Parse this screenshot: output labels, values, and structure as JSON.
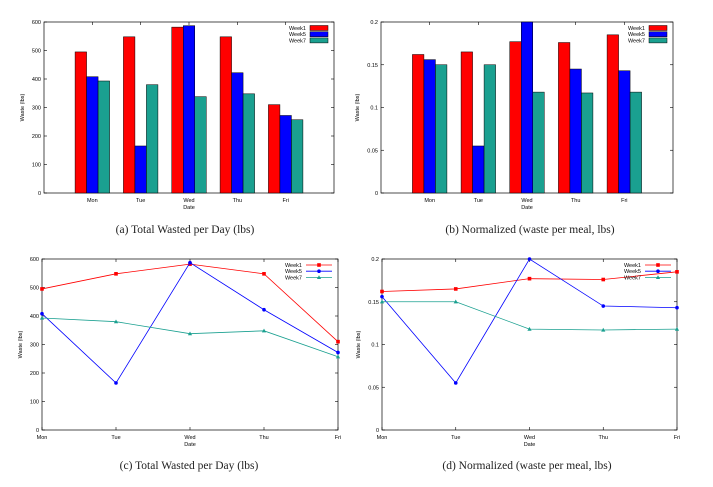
{
  "captions": [
    "(a)  Total Wasted per Day (lbs)",
    "(b)  Normalized (waste per meal, lbs)",
    "(c)  Total Wasted per Day (lbs)",
    "(d)  Normalized (waste per meal, lbs)"
  ],
  "colors": {
    "Week1": "#ff0000",
    "Week5": "#0000ff",
    "Week7": "#1aa090"
  },
  "chart_data": [
    {
      "type": "bar",
      "title": "",
      "xlabel": "Date",
      "ylabel": "Waste (lbs)",
      "categories": [
        "Mon",
        "Tue",
        "Wed",
        "Thu",
        "Fri"
      ],
      "ylim": [
        0,
        600
      ],
      "yticks": [
        0,
        100,
        200,
        300,
        400,
        500,
        600
      ],
      "legend": "top-right",
      "grid": false,
      "series": [
        {
          "name": "Week1",
          "values": [
            495,
            548,
            582,
            548,
            310
          ]
        },
        {
          "name": "Week5",
          "values": [
            408,
            165,
            587,
            422,
            272
          ]
        },
        {
          "name": "Week7",
          "values": [
            393,
            380,
            338,
            348,
            257
          ]
        }
      ]
    },
    {
      "type": "bar",
      "title": "",
      "xlabel": "Date",
      "ylabel": "Waste (lbs)",
      "categories": [
        "Mon",
        "Tue",
        "Wed",
        "Thu",
        "Fri"
      ],
      "ylim": [
        0,
        0.2
      ],
      "yticks": [
        0,
        0.05,
        0.1,
        0.15,
        0.2
      ],
      "legend": "top-right",
      "grid": false,
      "series": [
        {
          "name": "Week1",
          "values": [
            0.162,
            0.165,
            0.177,
            0.176,
            0.185
          ]
        },
        {
          "name": "Week5",
          "values": [
            0.156,
            0.055,
            0.2,
            0.145,
            0.143
          ]
        },
        {
          "name": "Week7",
          "values": [
            0.15,
            0.15,
            0.118,
            0.117,
            0.118
          ]
        }
      ]
    },
    {
      "type": "line",
      "title": "",
      "xlabel": "Date",
      "ylabel": "Waste (lbs)",
      "categories": [
        "Mon",
        "Tue",
        "Wed",
        "Thu",
        "Fri"
      ],
      "ylim": [
        0,
        600
      ],
      "yticks": [
        0,
        100,
        200,
        300,
        400,
        500,
        600
      ],
      "legend": "top-right",
      "grid": false,
      "series": [
        {
          "name": "Week1",
          "marker": "square",
          "values": [
            495,
            548,
            582,
            548,
            310
          ]
        },
        {
          "name": "Week5",
          "marker": "circle",
          "values": [
            408,
            165,
            587,
            422,
            272
          ]
        },
        {
          "name": "Week7",
          "marker": "triangle",
          "values": [
            393,
            380,
            338,
            348,
            257
          ]
        }
      ]
    },
    {
      "type": "line",
      "title": "",
      "xlabel": "Date",
      "ylabel": "Waste (lbs)",
      "categories": [
        "Mon",
        "Tue",
        "Wed",
        "Thu",
        "Fri"
      ],
      "ylim": [
        0,
        0.2
      ],
      "yticks": [
        0,
        0.05,
        0.1,
        0.15,
        0.2
      ],
      "legend": "top-right",
      "grid": false,
      "series": [
        {
          "name": "Week1",
          "marker": "square",
          "values": [
            0.162,
            0.165,
            0.177,
            0.176,
            0.185
          ]
        },
        {
          "name": "Week5",
          "marker": "circle",
          "values": [
            0.156,
            0.055,
            0.2,
            0.145,
            0.143
          ]
        },
        {
          "name": "Week7",
          "marker": "triangle",
          "values": [
            0.15,
            0.15,
            0.118,
            0.117,
            0.118
          ]
        }
      ]
    }
  ]
}
